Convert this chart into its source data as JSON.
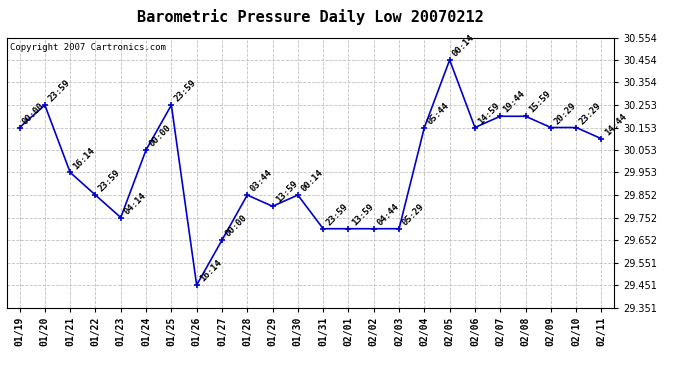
{
  "title": "Barometric Pressure Daily Low 20070212",
  "copyright": "Copyright 2007 Cartronics.com",
  "x_labels": [
    "01/19",
    "01/20",
    "01/21",
    "01/22",
    "01/23",
    "01/24",
    "01/25",
    "01/26",
    "01/27",
    "01/28",
    "01/29",
    "01/30",
    "01/31",
    "02/01",
    "02/02",
    "02/03",
    "02/04",
    "02/05",
    "02/06",
    "02/07",
    "02/08",
    "02/09",
    "02/10",
    "02/11"
  ],
  "y_values": [
    30.153,
    30.253,
    29.953,
    29.852,
    29.752,
    30.053,
    30.253,
    29.451,
    29.651,
    29.852,
    29.802,
    29.852,
    29.702,
    29.702,
    29.702,
    29.702,
    30.153,
    30.454,
    30.153,
    30.203,
    30.203,
    30.153,
    30.153,
    30.103
  ],
  "annotations": [
    "00:00",
    "23:59",
    "16:14",
    "23:59",
    "04:14",
    "00:00",
    "23:59",
    "16:14",
    "00:00",
    "03:44",
    "13:59",
    "00:14",
    "23:59",
    "13:59",
    "04:44",
    "05:29",
    "05:44",
    "00:14",
    "14:59",
    "19:44",
    "15:59",
    "20:29",
    "23:29",
    "14:44"
  ],
  "line_color": "#0000CC",
  "marker_color": "#0000CC",
  "background_color": "#ffffff",
  "plot_bg_color": "#ffffff",
  "grid_color": "#c0c0c0",
  "title_fontsize": 11,
  "annotation_fontsize": 6.5,
  "tick_fontsize": 7,
  "copyright_fontsize": 6.5,
  "ylim": [
    29.351,
    30.554
  ],
  "yticks": [
    29.351,
    29.451,
    29.551,
    29.652,
    29.752,
    29.852,
    29.953,
    30.053,
    30.153,
    30.253,
    30.354,
    30.454,
    30.554
  ]
}
